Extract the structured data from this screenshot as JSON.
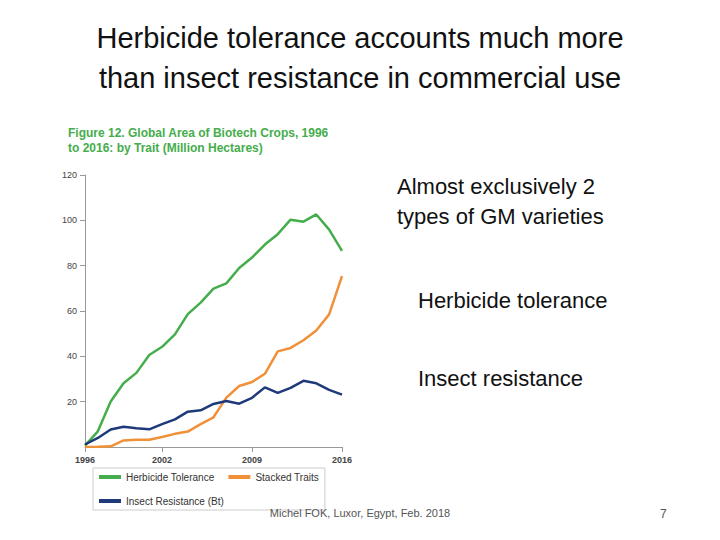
{
  "heading": [
    "Herbicide tolerance accounts much more",
    "than insect resistance in commercial use"
  ],
  "side_text": [
    [
      "Almost exclusively 2",
      "types of GM varieties"
    ],
    [
      "Herbicide tolerance"
    ],
    [
      "Insect resistance"
    ]
  ],
  "footer": "Michel FOK, Luxor, Egypt, Feb. 2018",
  "page_number": "7",
  "chart_data": {
    "type": "line",
    "title": "Figure 12. Global Area of Biotech Crops, 1996 to 2016: by Trait (Million Hectares)",
    "x": [
      1996,
      1997,
      1998,
      1999,
      2000,
      2001,
      2002,
      2003,
      2004,
      2005,
      2006,
      2007,
      2008,
      2009,
      2010,
      2011,
      2012,
      2013,
      2014,
      2015,
      2016
    ],
    "series": [
      {
        "name": "Herbicide Tolerance",
        "color": "#45ad4b",
        "values": [
          0.6,
          6.9,
          20.1,
          28.1,
          32.7,
          40.6,
          44.2,
          49.7,
          58.6,
          63.7,
          69.9,
          72.2,
          79.0,
          83.6,
          89.3,
          93.9,
          100.3,
          99.4,
          102.6,
          95.9,
          86.5
        ]
      },
      {
        "name": "Stacked Traits",
        "color": "#f0913a",
        "values": [
          0,
          0.1,
          0.3,
          2.9,
          3.2,
          3.2,
          4.4,
          5.8,
          6.8,
          10.1,
          13.1,
          21.8,
          26.9,
          28.7,
          32.3,
          42.2,
          43.7,
          47.1,
          51.4,
          58.5,
          75.4
        ]
      },
      {
        "name": "Insect Resistance (Bt)",
        "color": "#1f3a7a",
        "values": [
          1.1,
          4.0,
          7.7,
          8.9,
          8.3,
          7.8,
          10.1,
          12.2,
          15.6,
          16.2,
          19.0,
          20.3,
          19.1,
          21.7,
          26.3,
          23.9,
          26.1,
          29.2,
          28.1,
          25.2,
          23.1
        ]
      }
    ],
    "xlim": [
      1996,
      2016
    ],
    "xticks": [
      1996,
      2002,
      2009,
      2016
    ],
    "ylim": [
      0,
      120
    ],
    "yticks": [
      20,
      40,
      60,
      80,
      100,
      120
    ],
    "grid": false,
    "legend": "bottom"
  }
}
